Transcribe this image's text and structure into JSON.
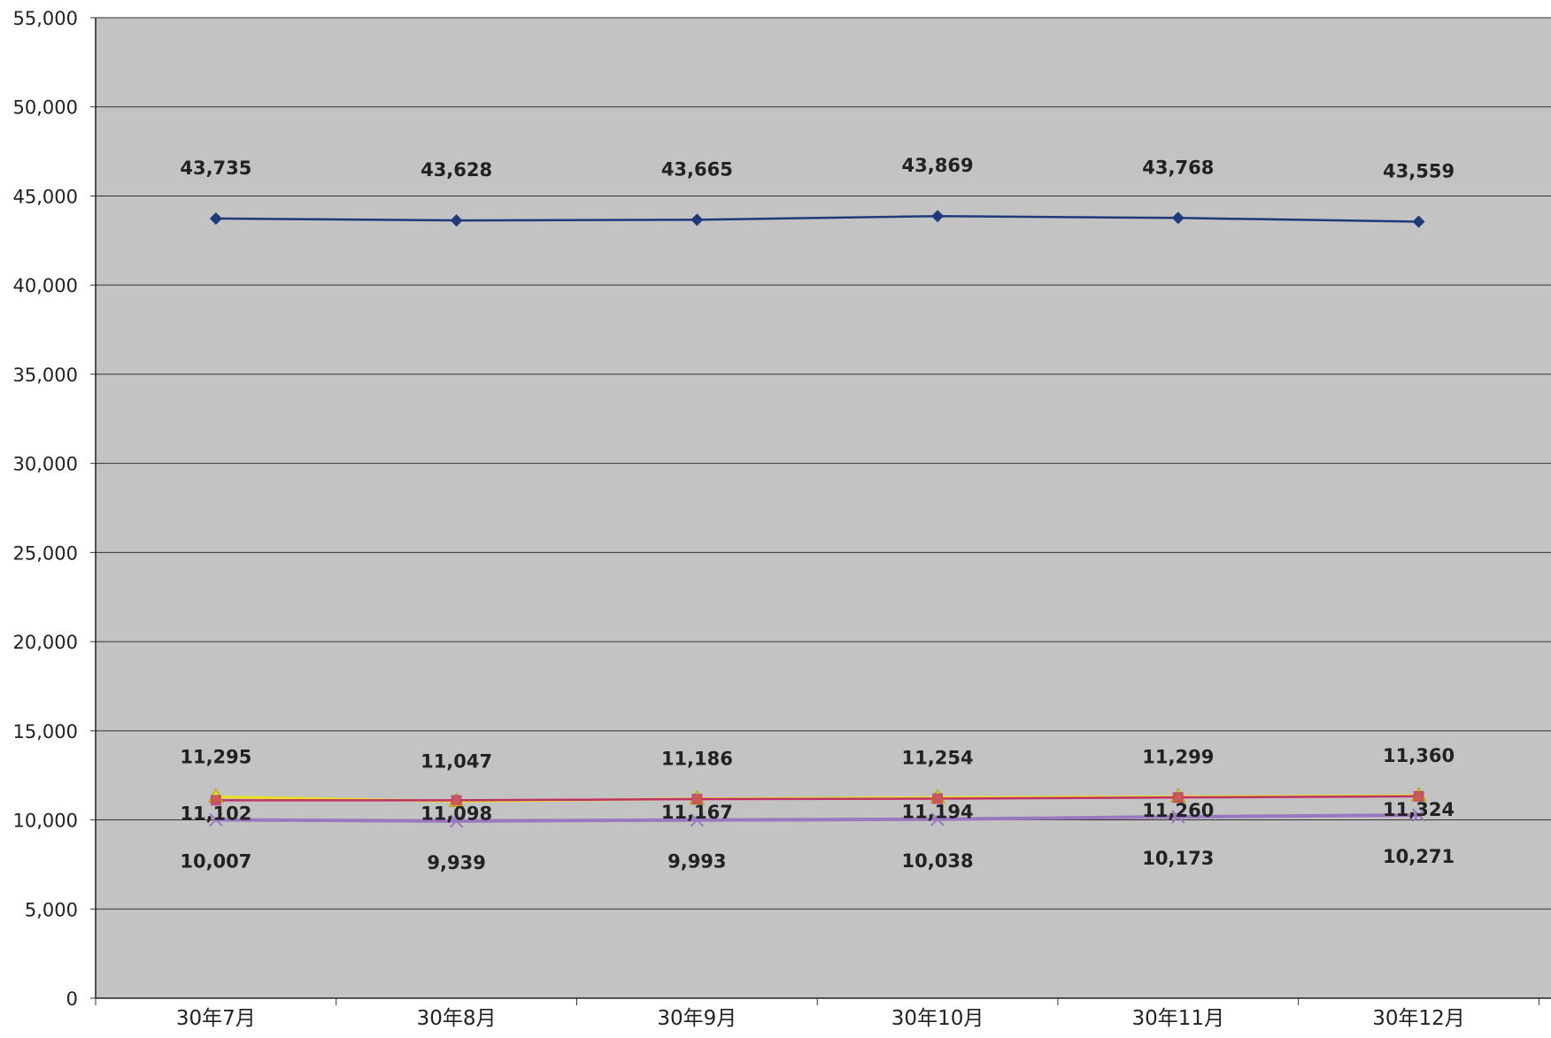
{
  "chart_data": {
    "type": "line",
    "categories": [
      "30年7月",
      "30年8月",
      "30年9月",
      "30年10月",
      "30年11月",
      "30年12月"
    ],
    "ylim": [
      0,
      55000
    ],
    "yticks": [
      0,
      5000,
      10000,
      15000,
      20000,
      25000,
      30000,
      35000,
      40000,
      45000,
      50000,
      55000
    ],
    "ytick_labels": [
      "0",
      "5,000",
      "10,000",
      "15,000",
      "20,000",
      "25,000",
      "30,000",
      "35,000",
      "40,000",
      "45,000",
      "50,000",
      "55,000"
    ],
    "grid": true,
    "series": [
      {
        "values": [
          43735,
          43628,
          43665,
          43869,
          43768,
          43559
        ],
        "labels": [
          "43,735",
          "43,628",
          "43,665",
          "43,869",
          "43,768",
          "43,559"
        ],
        "color": "#1f3a7a",
        "marker": "diamond"
      },
      {
        "values": [
          11295,
          11047,
          11186,
          11254,
          11299,
          11360
        ],
        "labels": [
          "11,295",
          "11,047",
          "11,186",
          "11,254",
          "11,299",
          "11,360"
        ],
        "color": "#e8e020",
        "marker": "triangle"
      },
      {
        "values": [
          11102,
          11098,
          11167,
          11194,
          11260,
          11324
        ],
        "labels": [
          "11,102",
          "11,098",
          "11,167",
          "11,194",
          "11,260",
          "11,324"
        ],
        "color": "#c0306a",
        "marker": "square"
      },
      {
        "values": [
          10007,
          9939,
          9993,
          10038,
          10173,
          10271
        ],
        "labels": [
          "10,007",
          "9,939",
          "9,993",
          "10,038",
          "10,173",
          "10,271"
        ],
        "color": "#9a78c0",
        "marker": "x"
      }
    ]
  }
}
